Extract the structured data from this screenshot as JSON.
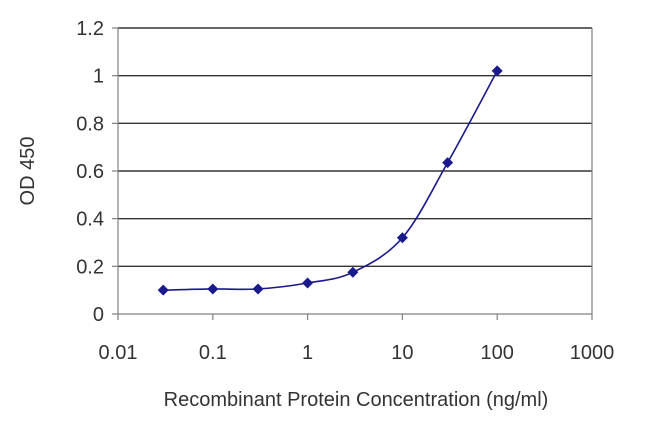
{
  "chart_data": {
    "type": "scatter",
    "x_scale": "log",
    "grid": true,
    "xlabel": "Recombinant Protein Concentration (ng/ml)",
    "ylabel": "OD 450",
    "xlim": [
      0.01,
      1000
    ],
    "ylim": [
      0,
      1.2
    ],
    "x_ticks": [
      0.01,
      0.1,
      1,
      10,
      100,
      1000
    ],
    "x_tick_labels": [
      "0.01",
      "0.1",
      "1",
      "10",
      "100",
      "1000"
    ],
    "y_ticks": [
      0,
      0.2,
      0.4,
      0.6,
      0.8,
      1,
      1.2
    ],
    "y_tick_labels": [
      "0",
      "0.2",
      "0.4",
      "0.6",
      "0.8",
      "1",
      "1.2"
    ],
    "series": [
      {
        "x": [
          0.03,
          0.1,
          0.3,
          1,
          3,
          10,
          30,
          100
        ],
        "y": [
          0.1,
          0.105,
          0.105,
          0.13,
          0.175,
          0.32,
          0.635,
          1.02
        ],
        "color": "#1a1a8c",
        "line_style": "smooth"
      }
    ]
  }
}
